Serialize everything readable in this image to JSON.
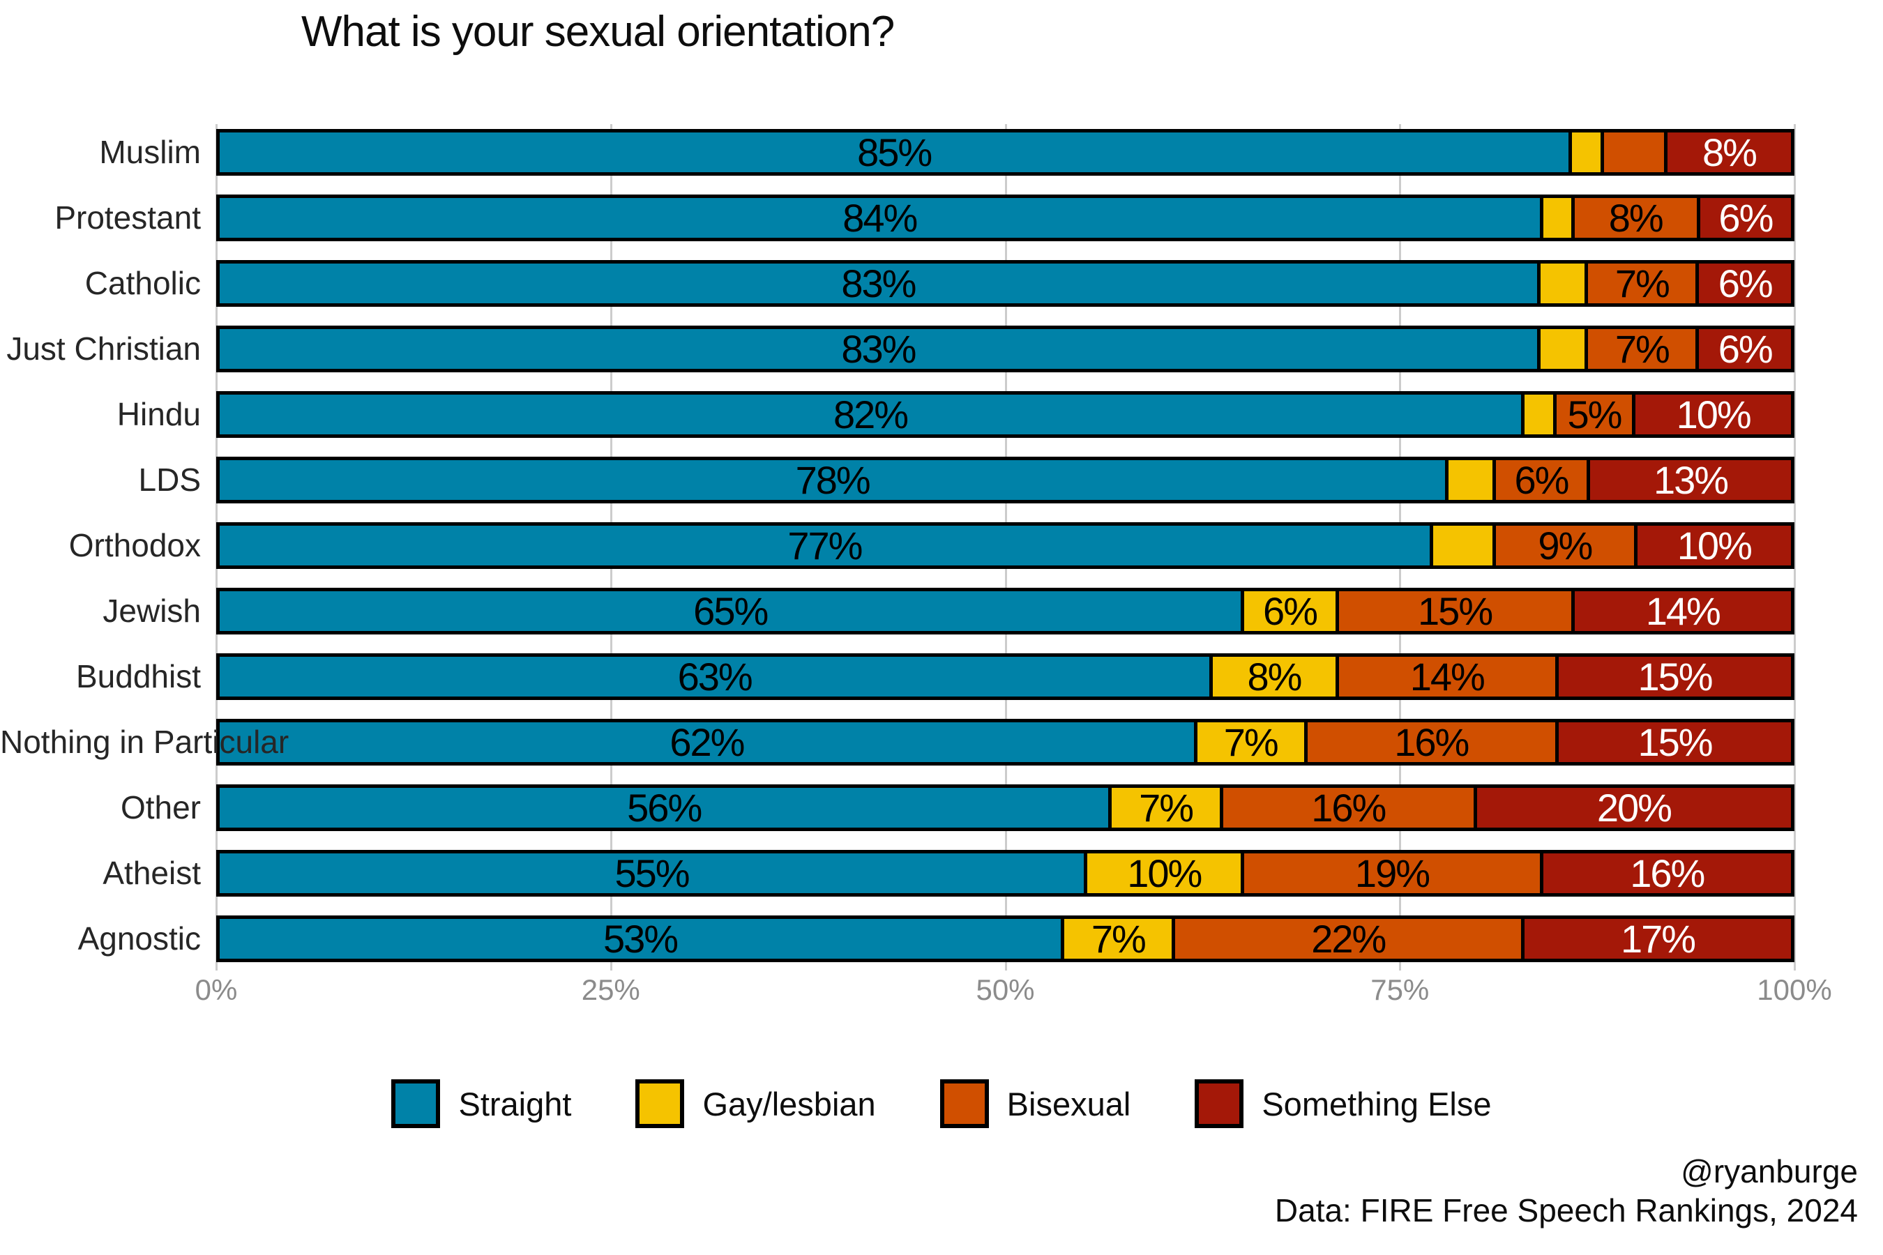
{
  "title": "What is your sexual orientation?",
  "footer": {
    "handle": "@ryanburge",
    "source": "Data: FIRE Free Speech Rankings, 2024"
  },
  "colors": {
    "straight": "#0082A8",
    "gay_lesbian": "#F5C300",
    "bisexual": "#D04F00",
    "something_else": "#A41808",
    "gridline": "#CCCCCC",
    "tick_text": "#8B8B8B",
    "bar_border": "#000000"
  },
  "chart_data": {
    "type": "bar",
    "stacked": true,
    "orientation": "horizontal",
    "title": "What is your sexual orientation?",
    "categories": [
      "Muslim",
      "Protestant",
      "Catholic",
      "Just Christian",
      "Hindu",
      "LDS",
      "Orthodox",
      "Jewish",
      "Buddhist",
      "Nothing in Particular",
      "Other",
      "Atheist",
      "Agnostic"
    ],
    "series": [
      {
        "name": "Straight",
        "color": "#0082A8",
        "text_color": "#000000",
        "values": [
          85,
          84,
          83,
          83,
          82,
          78,
          77,
          65,
          63,
          62,
          56,
          55,
          53
        ]
      },
      {
        "name": "Gay/lesbian",
        "color": "#F5C300",
        "text_color": "#000000",
        "values": [
          2,
          2,
          3,
          3,
          2,
          3,
          4,
          6,
          8,
          7,
          7,
          10,
          7
        ]
      },
      {
        "name": "Bisexual",
        "color": "#D04F00",
        "text_color": "#000000",
        "values": [
          4,
          8,
          7,
          7,
          5,
          6,
          9,
          15,
          14,
          16,
          16,
          19,
          22
        ]
      },
      {
        "name": "Something Else",
        "color": "#A41808",
        "text_color": "#FFFFFF",
        "values": [
          8,
          6,
          6,
          6,
          10,
          13,
          10,
          14,
          15,
          15,
          20,
          16,
          17
        ]
      }
    ],
    "value_suffix": "%",
    "label_min_value": 5,
    "x_ticks": [
      "0%",
      "25%",
      "50%",
      "75%",
      "100%"
    ],
    "xlim": [
      0,
      100
    ],
    "grid": "vertical-light",
    "legend_position": "bottom"
  }
}
